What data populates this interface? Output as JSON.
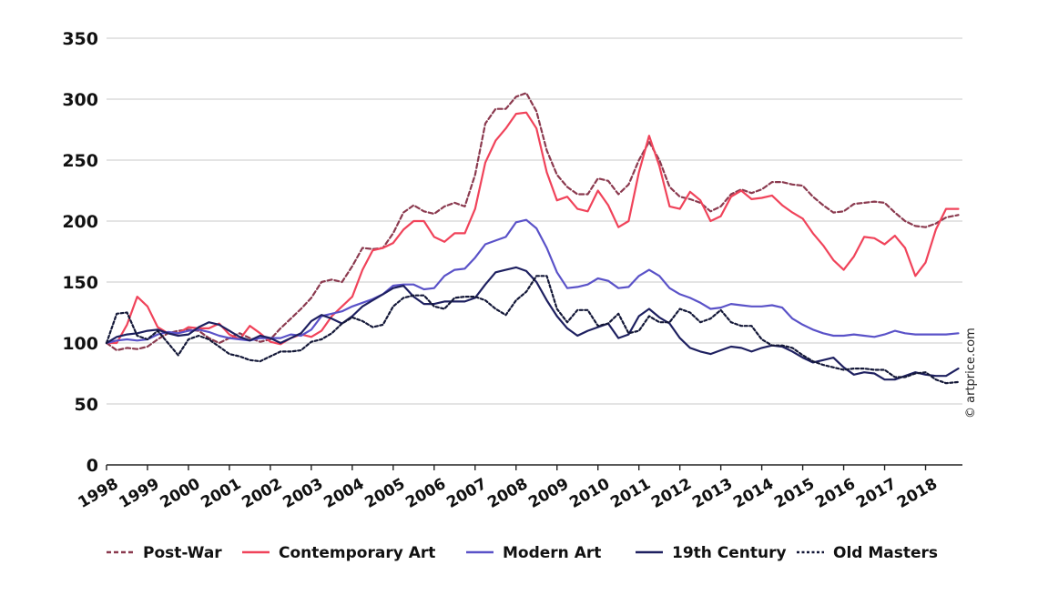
{
  "chart_data": {
    "type": "line",
    "title": "",
    "xlabel": "",
    "ylabel": "",
    "ylim": [
      0,
      350
    ],
    "xlim": [
      1998,
      2018.9
    ],
    "yticks": [
      "0",
      "50",
      "100",
      "150",
      "200",
      "250",
      "300",
      "350"
    ],
    "xticks": [
      "1998",
      "1999",
      "2000",
      "2001",
      "2002",
      "2003",
      "2004",
      "2005",
      "2006",
      "2007",
      "2008",
      "2009",
      "2010",
      "2011",
      "2012",
      "2013",
      "2014",
      "2015",
      "2016",
      "2017",
      "2018"
    ],
    "grid": "horizontal",
    "legend_position": "bottom",
    "credit": "© artprice.com",
    "series": [
      {
        "name": "Post-War",
        "color": "#8b3a4f",
        "dash": "dashed",
        "x": [
          1998,
          1998.25,
          1998.5,
          1998.75,
          1999,
          1999.25,
          1999.5,
          1999.75,
          2000,
          2000.25,
          2000.5,
          2000.75,
          2001,
          2001.25,
          2001.5,
          2001.75,
          2002,
          2002.25,
          2002.5,
          2002.75,
          2003,
          2003.25,
          2003.5,
          2003.75,
          2004,
          2004.25,
          2004.5,
          2004.75,
          2005,
          2005.25,
          2005.5,
          2005.75,
          2006,
          2006.25,
          2006.5,
          2006.75,
          2007,
          2007.25,
          2007.5,
          2007.75,
          2008,
          2008.25,
          2008.5,
          2008.75,
          2009,
          2009.25,
          2009.5,
          2009.75,
          2010,
          2010.25,
          2010.5,
          2010.75,
          2011,
          2011.25,
          2011.5,
          2011.75,
          2012,
          2012.25,
          2012.5,
          2012.75,
          2013,
          2013.25,
          2013.5,
          2013.75,
          2014,
          2014.25,
          2014.5,
          2014.75,
          2015,
          2015.25,
          2015.5,
          2015.75,
          2016,
          2016.25,
          2016.5,
          2016.75,
          2017,
          2017.25,
          2017.5,
          2017.75,
          2018,
          2018.25,
          2018.5,
          2018.8
        ],
        "y": [
          100,
          94,
          96,
          95,
          97,
          103,
          108,
          110,
          111,
          110,
          104,
          100,
          104,
          108,
          104,
          101,
          103,
          112,
          120,
          128,
          137,
          150,
          152,
          150,
          163,
          178,
          177,
          178,
          190,
          207,
          213,
          208,
          206,
          212,
          215,
          212,
          238,
          280,
          292,
          292,
          302,
          305,
          290,
          258,
          238,
          228,
          222,
          222,
          235,
          233,
          222,
          230,
          250,
          265,
          250,
          228,
          220,
          218,
          215,
          208,
          212,
          222,
          226,
          223,
          226,
          232,
          232,
          230,
          229,
          220,
          213,
          207,
          208,
          214,
          215,
          216,
          215,
          207,
          200,
          196,
          195,
          198,
          203,
          205
        ]
      },
      {
        "name": "Contemporary Art",
        "color": "#f0435a",
        "dash": "solid",
        "x": [
          1998,
          1998.25,
          1998.5,
          1998.75,
          1999,
          1999.25,
          1999.5,
          1999.75,
          2000,
          2000.25,
          2000.5,
          2000.75,
          2001,
          2001.25,
          2001.5,
          2001.75,
          2002,
          2002.25,
          2002.5,
          2002.75,
          2003,
          2003.25,
          2003.5,
          2003.75,
          2004,
          2004.25,
          2004.5,
          2004.75,
          2005,
          2005.25,
          2005.5,
          2005.75,
          2006,
          2006.25,
          2006.5,
          2006.75,
          2007,
          2007.25,
          2007.5,
          2007.75,
          2008,
          2008.25,
          2008.5,
          2008.75,
          2009,
          2009.25,
          2009.5,
          2009.75,
          2010,
          2010.25,
          2010.5,
          2010.75,
          2011,
          2011.25,
          2011.5,
          2011.75,
          2012,
          2012.25,
          2012.5,
          2012.75,
          2013,
          2013.25,
          2013.5,
          2013.75,
          2014,
          2014.25,
          2014.5,
          2014.75,
          2015,
          2015.25,
          2015.5,
          2015.75,
          2016,
          2016.25,
          2016.5,
          2016.75,
          2017,
          2017.25,
          2017.5,
          2017.75,
          2018,
          2018.25,
          2018.5,
          2018.8
        ],
        "y": [
          100,
          100,
          115,
          138,
          130,
          113,
          108,
          108,
          113,
          112,
          112,
          116,
          107,
          103,
          114,
          108,
          101,
          99,
          104,
          107,
          105,
          110,
          122,
          130,
          138,
          160,
          176,
          178,
          182,
          193,
          200,
          200,
          187,
          183,
          190,
          190,
          210,
          248,
          266,
          276,
          288,
          289,
          276,
          240,
          217,
          220,
          210,
          208,
          225,
          213,
          195,
          200,
          240,
          270,
          245,
          212,
          210,
          224,
          217,
          200,
          204,
          220,
          225,
          218,
          219,
          221,
          213,
          207,
          202,
          190,
          180,
          168,
          160,
          171,
          187,
          186,
          181,
          188,
          178,
          155,
          166,
          193,
          210,
          210
        ]
      },
      {
        "name": "Modern Art",
        "color": "#5a52c8",
        "dash": "solid",
        "x": [
          1998,
          1998.25,
          1998.5,
          1998.75,
          1999,
          1999.25,
          1999.5,
          1999.75,
          2000,
          2000.25,
          2000.5,
          2000.75,
          2001,
          2001.25,
          2001.5,
          2001.75,
          2002,
          2002.25,
          2002.5,
          2002.75,
          2003,
          2003.25,
          2003.5,
          2003.75,
          2004,
          2004.25,
          2004.5,
          2004.75,
          2005,
          2005.25,
          2005.5,
          2005.75,
          2006,
          2006.25,
          2006.5,
          2006.75,
          2007,
          2007.25,
          2007.5,
          2007.75,
          2008,
          2008.25,
          2008.5,
          2008.75,
          2009,
          2009.25,
          2009.5,
          2009.75,
          2010,
          2010.25,
          2010.5,
          2010.75,
          2011,
          2011.25,
          2011.5,
          2011.75,
          2012,
          2012.25,
          2012.5,
          2012.75,
          2013,
          2013.25,
          2013.5,
          2013.75,
          2014,
          2014.25,
          2014.5,
          2014.75,
          2015,
          2015.25,
          2015.5,
          2015.75,
          2016,
          2016.25,
          2016.5,
          2016.75,
          2017,
          2017.25,
          2017.5,
          2017.75,
          2018,
          2018.25,
          2018.5,
          2018.8
        ],
        "y": [
          100,
          102,
          103,
          102,
          103,
          107,
          109,
          108,
          110,
          111,
          109,
          106,
          104,
          103,
          102,
          104,
          104,
          104,
          107,
          106,
          111,
          122,
          124,
          126,
          130,
          133,
          136,
          140,
          147,
          148,
          148,
          144,
          145,
          155,
          160,
          161,
          170,
          181,
          184,
          187,
          199,
          201,
          194,
          178,
          158,
          145,
          146,
          148,
          153,
          151,
          145,
          146,
          155,
          160,
          155,
          145,
          140,
          137,
          133,
          128,
          129,
          132,
          131,
          130,
          130,
          131,
          129,
          120,
          115,
          111,
          108,
          106,
          106,
          107,
          106,
          105,
          107,
          110,
          108,
          107,
          107,
          107,
          107,
          108
        ]
      },
      {
        "name": "19th Century",
        "color": "#1e2060",
        "dash": "solid",
        "x": [
          1998,
          1998.25,
          1998.5,
          1998.75,
          1999,
          1999.25,
          1999.5,
          1999.75,
          2000,
          2000.25,
          2000.5,
          2000.75,
          2001,
          2001.25,
          2001.5,
          2001.75,
          2002,
          2002.25,
          2002.5,
          2002.75,
          2003,
          2003.25,
          2003.5,
          2003.75,
          2004,
          2004.25,
          2004.5,
          2004.75,
          2005,
          2005.25,
          2005.5,
          2005.75,
          2006,
          2006.25,
          2006.5,
          2006.75,
          2007,
          2007.25,
          2007.5,
          2007.75,
          2008,
          2008.25,
          2008.5,
          2008.75,
          2009,
          2009.25,
          2009.5,
          2009.75,
          2010,
          2010.25,
          2010.5,
          2010.75,
          2011,
          2011.25,
          2011.5,
          2011.75,
          2012,
          2012.25,
          2012.5,
          2012.75,
          2013,
          2013.25,
          2013.5,
          2013.75,
          2014,
          2014.25,
          2014.5,
          2014.75,
          2015,
          2015.25,
          2015.5,
          2015.75,
          2016,
          2016.25,
          2016.5,
          2016.75,
          2017,
          2017.25,
          2017.5,
          2017.75,
          2018,
          2018.25,
          2018.5,
          2018.8
        ],
        "y": [
          100,
          105,
          107,
          108,
          110,
          111,
          108,
          106,
          107,
          113,
          117,
          115,
          110,
          105,
          102,
          106,
          104,
          100,
          104,
          108,
          118,
          123,
          120,
          116,
          122,
          130,
          135,
          140,
          145,
          147,
          138,
          132,
          132,
          134,
          134,
          134,
          137,
          148,
          158,
          160,
          162,
          159,
          150,
          135,
          122,
          112,
          106,
          110,
          113,
          116,
          104,
          107,
          122,
          128,
          121,
          116,
          104,
          96,
          93,
          91,
          94,
          97,
          96,
          93,
          96,
          98,
          97,
          93,
          88,
          84,
          86,
          88,
          80,
          74,
          76,
          75,
          70,
          70,
          73,
          76,
          74,
          73,
          73,
          79
        ]
      },
      {
        "name": "Old Masters",
        "color": "#141838",
        "dash": "dotted",
        "x": [
          1998,
          1998.25,
          1998.5,
          1998.75,
          1999,
          1999.25,
          1999.5,
          1999.75,
          2000,
          2000.25,
          2000.5,
          2000.75,
          2001,
          2001.25,
          2001.5,
          2001.75,
          2002,
          2002.25,
          2002.5,
          2002.75,
          2003,
          2003.25,
          2003.5,
          2003.75,
          2004,
          2004.25,
          2004.5,
          2004.75,
          2005,
          2005.25,
          2005.5,
          2005.75,
          2006,
          2006.25,
          2006.5,
          2006.75,
          2007,
          2007.25,
          2007.5,
          2007.75,
          2008,
          2008.25,
          2008.5,
          2008.75,
          2009,
          2009.25,
          2009.5,
          2009.75,
          2010,
          2010.25,
          2010.5,
          2010.75,
          2011,
          2011.25,
          2011.5,
          2011.75,
          2012,
          2012.25,
          2012.5,
          2012.75,
          2013,
          2013.25,
          2013.5,
          2013.75,
          2014,
          2014.25,
          2014.5,
          2014.75,
          2015,
          2015.25,
          2015.5,
          2015.75,
          2016,
          2016.25,
          2016.5,
          2016.75,
          2017,
          2017.25,
          2017.5,
          2017.75,
          2018,
          2018.25,
          2018.5,
          2018.8
        ],
        "y": [
          100,
          124,
          125,
          106,
          103,
          110,
          100,
          90,
          103,
          106,
          103,
          97,
          91,
          89,
          86,
          85,
          89,
          93,
          93,
          94,
          101,
          103,
          108,
          116,
          121,
          118,
          113,
          115,
          130,
          137,
          139,
          139,
          130,
          128,
          137,
          138,
          138,
          135,
          128,
          123,
          135,
          142,
          155,
          155,
          128,
          117,
          127,
          127,
          114,
          116,
          124,
          108,
          110,
          122,
          117,
          117,
          128,
          125,
          117,
          120,
          127,
          117,
          114,
          114,
          103,
          98,
          98,
          96,
          90,
          85,
          82,
          80,
          78,
          79,
          79,
          78,
          78,
          72,
          72,
          75,
          76,
          70,
          67,
          68
        ]
      }
    ]
  }
}
